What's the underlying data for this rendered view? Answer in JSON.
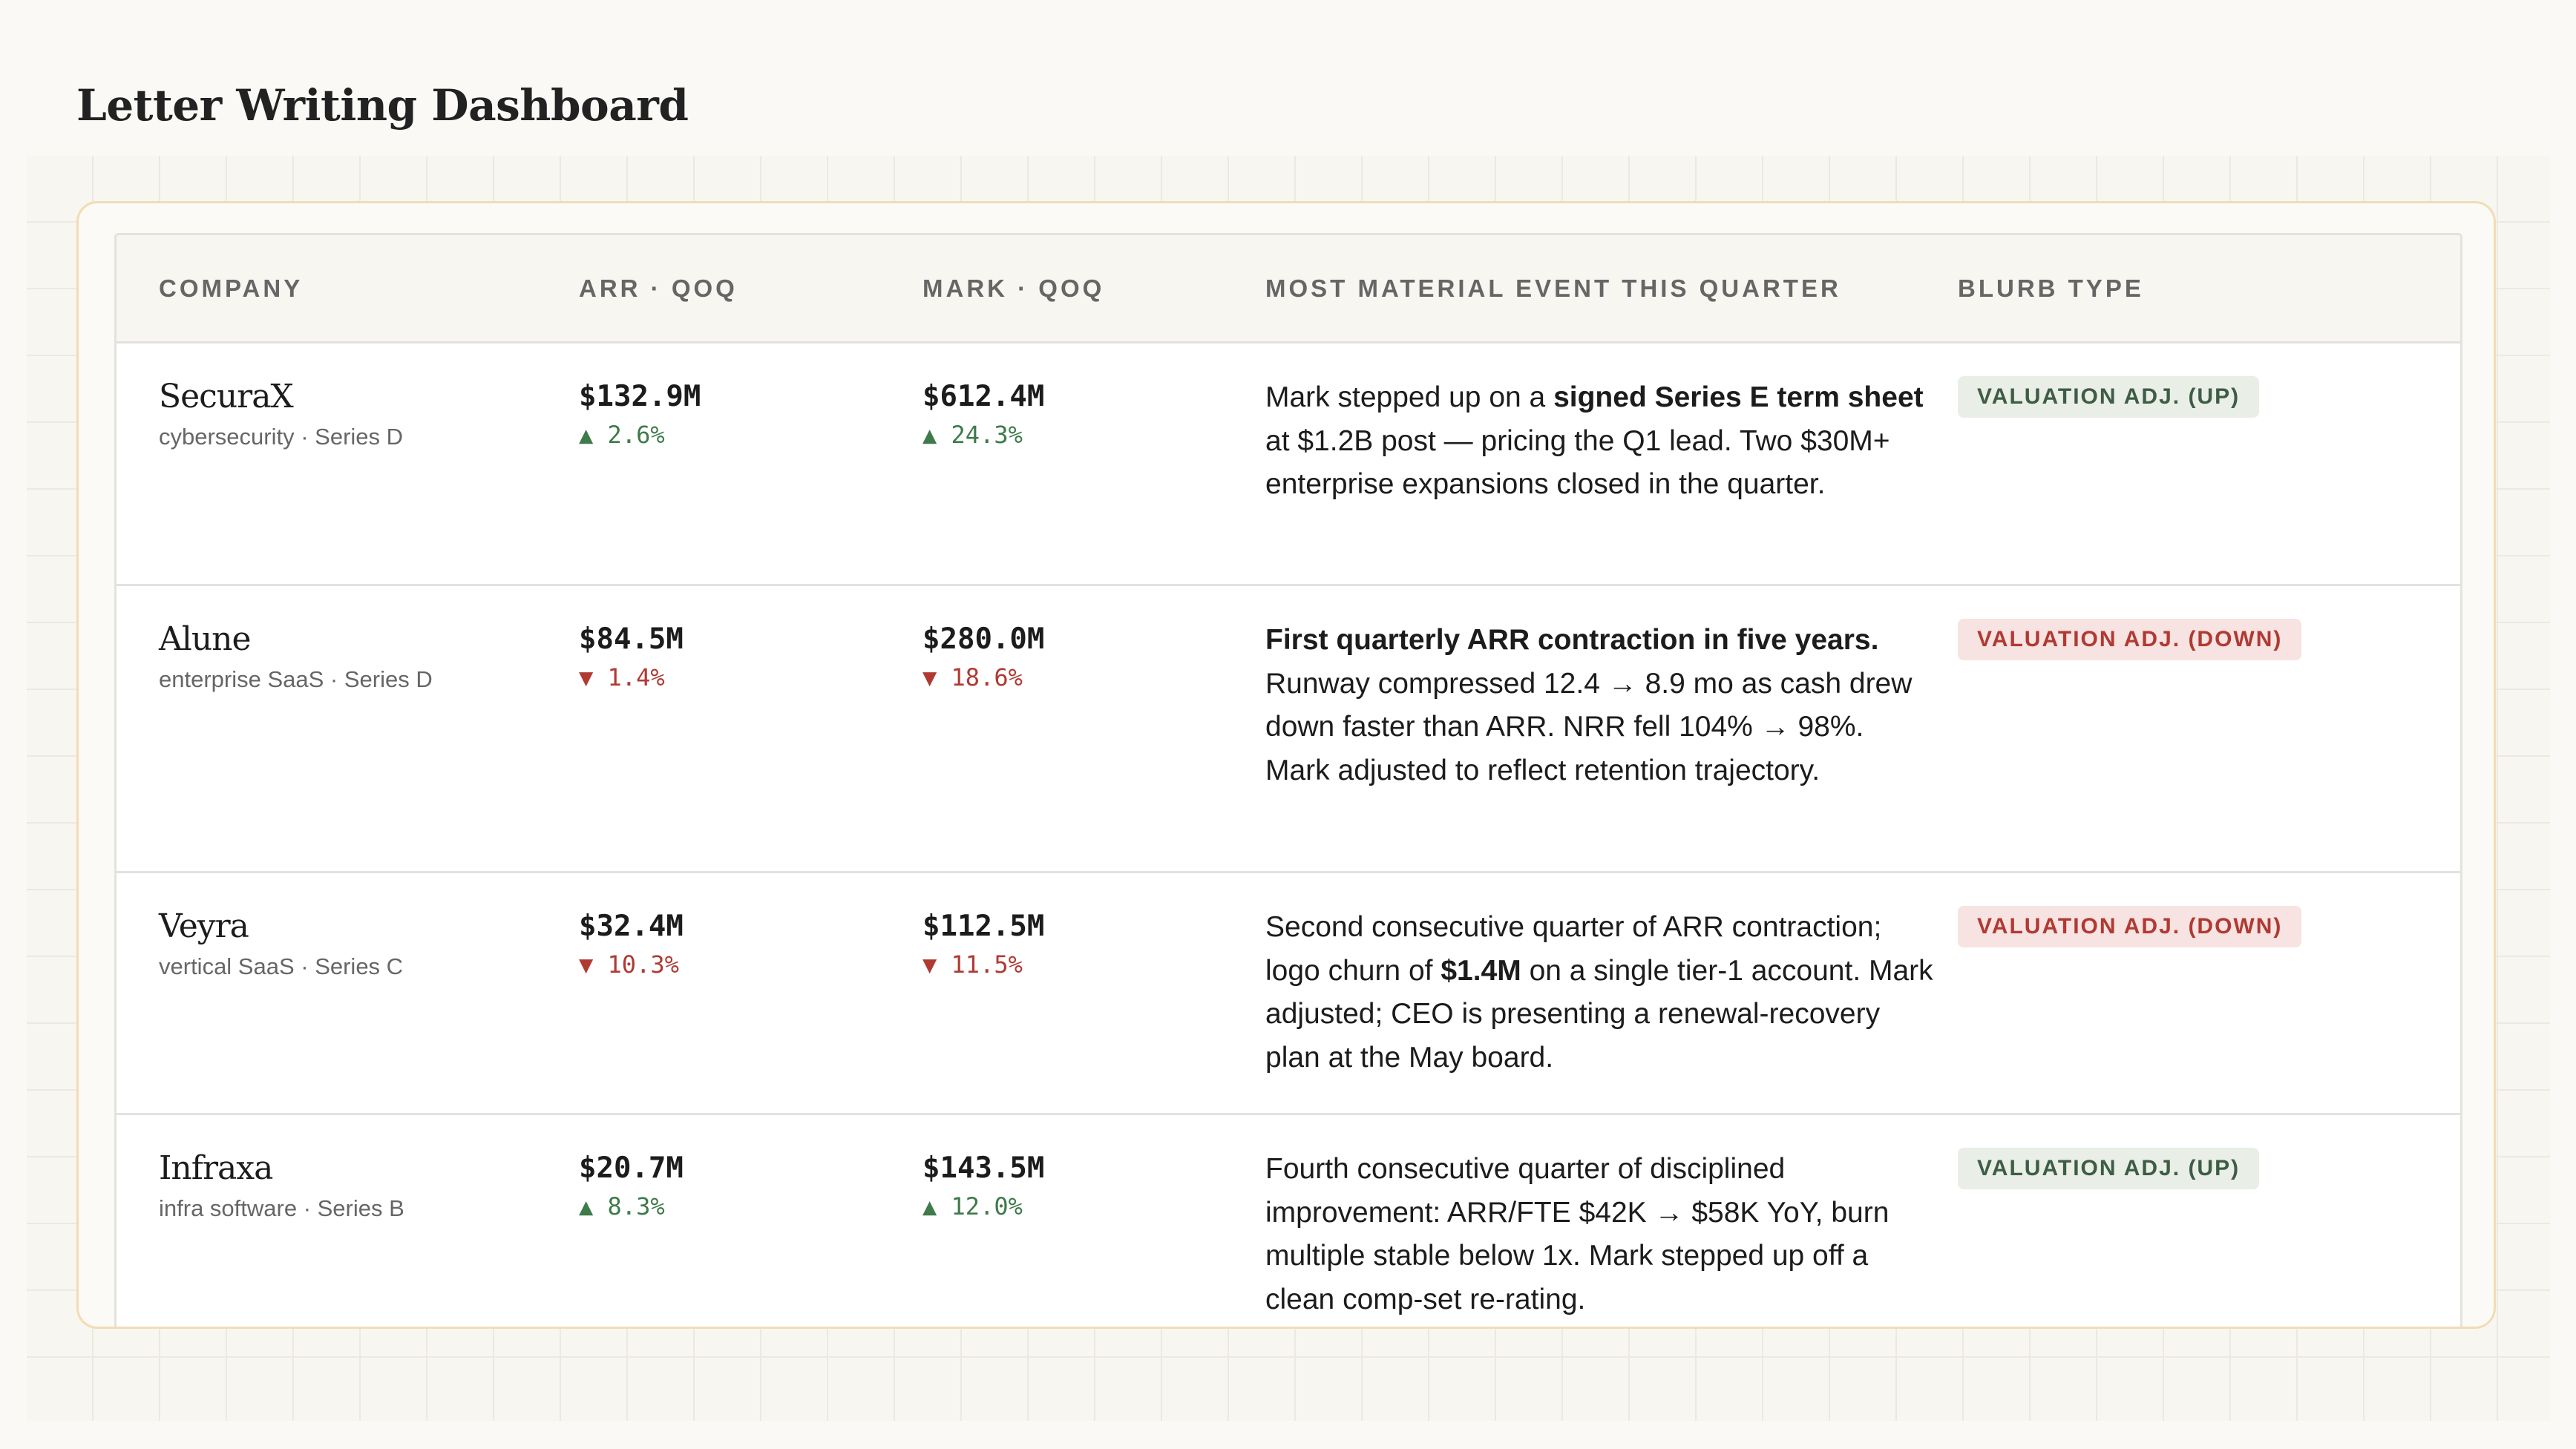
{
  "page": {
    "title": "Letter Writing Dashboard"
  },
  "colors": {
    "up": "#3e7a4a",
    "down": "#b03a33",
    "frame_border": "#f1dcb3"
  },
  "table": {
    "headers": {
      "company": "COMPANY",
      "arr": "ARR · QOQ",
      "mark": "MARK · QOQ",
      "event": "MOST MATERIAL EVENT THIS QUARTER",
      "type": "BLURB TYPE"
    },
    "rows": [
      {
        "name": "SecuraX",
        "sub": "cybersecurity · Series D",
        "arr": "$132.9M",
        "arr_delta": "▲ 2.6%",
        "arr_dir": "up",
        "mark": "$612.4M",
        "mark_delta": "▲ 24.3%",
        "mark_dir": "up",
        "event": [
          {
            "text": "Mark stepped up on a ",
            "bold": false
          },
          {
            "text": "signed Series E term sheet",
            "bold": true
          },
          {
            "text": " at $1.2B post — pricing the Q1 lead. Two $30M+ enterprise expansions closed in the quarter.",
            "bold": false
          }
        ],
        "badge": "VALUATION ADJ. (UP)",
        "badge_dir": "up"
      },
      {
        "name": "Alune",
        "sub": "enterprise SaaS · Series D",
        "arr": "$84.5M",
        "arr_delta": "▼ 1.4%",
        "arr_dir": "down",
        "mark": "$280.0M",
        "mark_delta": "▼ 18.6%",
        "mark_dir": "down",
        "event": [
          {
            "text": "First quarterly ARR contraction in five years.",
            "bold": true
          },
          {
            "text": " Runway compressed 12.4 → 8.9 mo as cash drew down faster than ARR. NRR fell 104% → 98%. Mark adjusted to reflect retention trajectory.",
            "bold": false
          }
        ],
        "badge": "VALUATION ADJ. (DOWN)",
        "badge_dir": "down"
      },
      {
        "name": "Veyra",
        "sub": "vertical SaaS · Series C",
        "arr": "$32.4M",
        "arr_delta": "▼ 10.3%",
        "arr_dir": "down",
        "mark": "$112.5M",
        "mark_delta": "▼ 11.5%",
        "mark_dir": "down",
        "event": [
          {
            "text": "Second consecutive quarter of ARR contraction; logo churn of ",
            "bold": false
          },
          {
            "text": "$1.4M",
            "bold": true
          },
          {
            "text": " on a single tier-1 account. Mark adjusted; CEO is presenting a renewal-recovery plan at the May board.",
            "bold": false
          }
        ],
        "badge": "VALUATION ADJ. (DOWN)",
        "badge_dir": "down"
      },
      {
        "name": "Infraxa",
        "sub": "infra software · Series B",
        "arr": "$20.7M",
        "arr_delta": "▲ 8.3%",
        "arr_dir": "up",
        "mark": "$143.5M",
        "mark_delta": "▲ 12.0%",
        "mark_dir": "up",
        "event": [
          {
            "text": "Fourth consecutive quarter of disciplined improvement: ARR/FTE $42K → $58K YoY, burn multiple stable below 1x. Mark stepped up off a clean comp-set re-rating.",
            "bold": false
          }
        ],
        "badge": "VALUATION ADJ. (UP)",
        "badge_dir": "up"
      }
    ]
  }
}
